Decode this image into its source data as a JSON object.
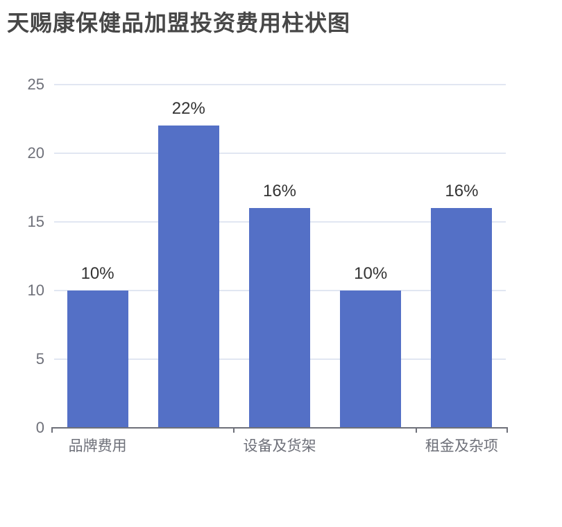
{
  "header": {
    "title": "天赐康保健品加盟投资费用柱状图"
  },
  "chart_data": {
    "type": "bar",
    "title": "天赐康保健品加盟投资费用柱状图",
    "categories": [
      "品牌费用",
      "",
      "设备及货架",
      "",
      "租金及杂项"
    ],
    "values": [
      10,
      22,
      16,
      10,
      16
    ],
    "data_labels": [
      "10%",
      "22%",
      "16%",
      "10%",
      "16%"
    ],
    "y_ticks": [
      0,
      5,
      10,
      15,
      20,
      25
    ],
    "ylim": [
      0,
      25
    ],
    "xlabel": "",
    "ylabel": "",
    "grid": true,
    "legend_position": "none",
    "notes": "x-axis labels shown only for categories 0, 2, 4; axis ticks at every other category boundary",
    "colors": {
      "bar": "#5470c6",
      "gridline": "#e1e6f2",
      "axis_line": "#6e7079",
      "tick_label": "#6e7079",
      "value_label": "#333333",
      "title": "#474747",
      "background": "#ffffff"
    }
  }
}
